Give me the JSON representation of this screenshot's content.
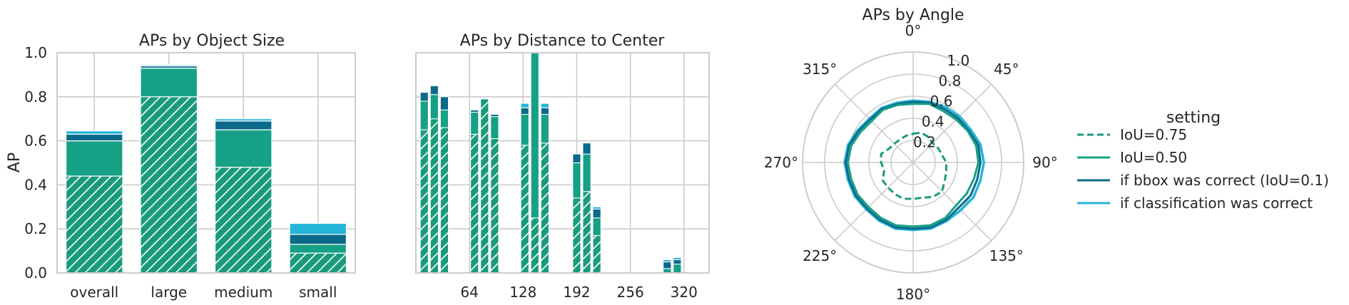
{
  "colors": {
    "iou75": "#1a9a7d",
    "iou50": "#16a085",
    "bbox": "#0b6a8a",
    "cls": "#25b5da",
    "grid": "#cccccc",
    "text": "#262626"
  },
  "chart_data": [
    {
      "type": "bar",
      "title": "APs by Object Size",
      "xlabel": "",
      "ylabel": "AP",
      "ylim": [
        0,
        1.0
      ],
      "yticks": [
        "0.0",
        "0.2",
        "0.4",
        "0.6",
        "0.8",
        "1.0"
      ],
      "grid": true,
      "categories": [
        "overall",
        "large",
        "medium",
        "small"
      ],
      "series": [
        {
          "name": "IoU=0.75",
          "values": [
            0.44,
            0.8,
            0.48,
            0.09
          ]
        },
        {
          "name": "IoU=0.50",
          "values": [
            0.6,
            0.93,
            0.65,
            0.13
          ]
        },
        {
          "name": "if bbox was correct (IoU=0.1)",
          "values": [
            0.63,
            0.94,
            0.69,
            0.175
          ]
        },
        {
          "name": "if classification was correct",
          "values": [
            0.645,
            0.945,
            0.7,
            0.225
          ]
        }
      ]
    },
    {
      "type": "bar",
      "title": "APs by Distance to Center",
      "xlabel": "",
      "ylabel": "",
      "xlim": [
        0,
        350
      ],
      "ylim": [
        0,
        1.0
      ],
      "xticks": [
        "64",
        "128",
        "192",
        "256",
        "320"
      ],
      "grid": true,
      "x": [
        10,
        22,
        34,
        70,
        82,
        94,
        130,
        142,
        154,
        192,
        204,
        216,
        240,
        252,
        264,
        300,
        312
      ],
      "series": [
        {
          "name": "IoU=0.75",
          "values": [
            0.65,
            0.7,
            0.66,
            0.63,
            0.79,
            0.61,
            0.58,
            0.25,
            0.59,
            0.34,
            0.37,
            0.17,
            0.0,
            0.0,
            0.0,
            0.0,
            0.0
          ]
        },
        {
          "name": "IoU=0.50",
          "values": [
            0.78,
            0.81,
            0.74,
            0.73,
            0.76,
            0.71,
            0.72,
            1.0,
            0.72,
            0.5,
            0.54,
            0.25,
            0.0,
            0.0,
            0.0,
            0.02,
            0.04
          ]
        },
        {
          "name": "if bbox was correct (IoU=0.1)",
          "values": [
            0.82,
            0.85,
            0.8,
            0.74,
            0.78,
            0.72,
            0.75,
            1.0,
            0.75,
            0.54,
            0.59,
            0.29,
            0.0,
            0.0,
            0.0,
            0.05,
            0.06
          ]
        },
        {
          "name": "if classification was correct",
          "values": [
            0.82,
            0.85,
            0.8,
            0.74,
            0.78,
            0.72,
            0.77,
            1.0,
            0.77,
            0.54,
            0.59,
            0.3,
            0.0,
            0.0,
            0.0,
            0.06,
            0.07
          ]
        }
      ]
    },
    {
      "type": "line",
      "subtype": "polar",
      "title": "APs by Angle",
      "rlim": [
        0,
        1.0
      ],
      "rticks": [
        "0.2",
        "0.4",
        "0.6",
        "0.8",
        "1.0"
      ],
      "angle_ticks": [
        "0°",
        "45°",
        "90°",
        "135°",
        "180°",
        "225°",
        "270°",
        "315°"
      ],
      "grid": true,
      "angles_deg": [
        0,
        15,
        30,
        45,
        60,
        75,
        90,
        105,
        120,
        135,
        150,
        165,
        180,
        195,
        210,
        225,
        240,
        255,
        270,
        285,
        300,
        315,
        330,
        345
      ],
      "series": [
        {
          "name": "IoU=0.75",
          "style": "dashed",
          "values": [
            0.26,
            0.28,
            0.27,
            0.25,
            0.26,
            0.27,
            0.3,
            0.31,
            0.33,
            0.37,
            0.36,
            0.33,
            0.33,
            0.34,
            0.33,
            0.32,
            0.32,
            0.27,
            0.29,
            0.3,
            0.25,
            0.24,
            0.24,
            0.25
          ]
        },
        {
          "name": "IoU=0.50",
          "values": [
            0.53,
            0.55,
            0.54,
            0.55,
            0.57,
            0.59,
            0.59,
            0.57,
            0.56,
            0.55,
            0.58,
            0.59,
            0.58,
            0.59,
            0.58,
            0.57,
            0.58,
            0.58,
            0.59,
            0.58,
            0.55,
            0.53,
            0.55,
            0.54
          ]
        },
        {
          "name": "if bbox was correct (IoU=0.1)",
          "values": [
            0.55,
            0.56,
            0.56,
            0.57,
            0.58,
            0.61,
            0.61,
            0.6,
            0.6,
            0.58,
            0.6,
            0.61,
            0.6,
            0.61,
            0.6,
            0.59,
            0.6,
            0.6,
            0.61,
            0.6,
            0.57,
            0.55,
            0.56,
            0.55
          ]
        },
        {
          "name": "if classification was correct",
          "values": [
            0.56,
            0.57,
            0.58,
            0.59,
            0.6,
            0.63,
            0.64,
            0.63,
            0.63,
            0.61,
            0.61,
            0.62,
            0.61,
            0.62,
            0.61,
            0.6,
            0.61,
            0.61,
            0.62,
            0.61,
            0.58,
            0.56,
            0.57,
            0.56
          ]
        }
      ]
    }
  ],
  "legend": {
    "title": "setting",
    "placement": "right",
    "items": [
      {
        "label": "IoU=0.75",
        "style": "dashed",
        "color": "#1a9a7d"
      },
      {
        "label": "IoU=0.50",
        "style": "solid",
        "color": "#16a085"
      },
      {
        "label": "if bbox was correct (IoU=0.1)",
        "style": "solid",
        "color": "#0b6a8a"
      },
      {
        "label": "if classification was correct",
        "style": "solid",
        "color": "#25b5da"
      }
    ]
  }
}
